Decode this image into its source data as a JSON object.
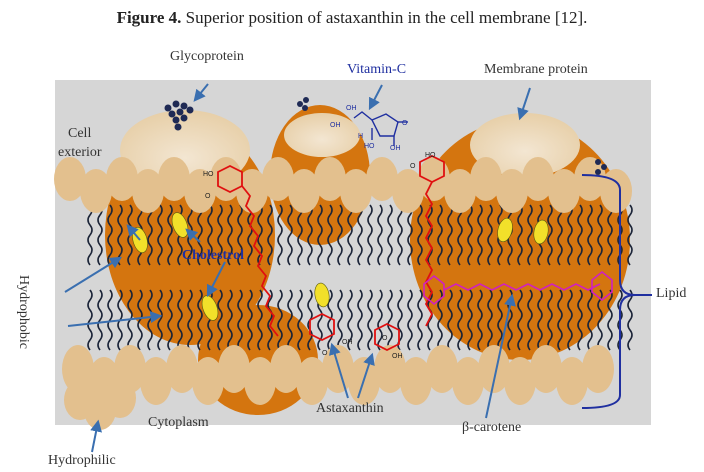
{
  "caption": {
    "figure_number": "Figure 4.",
    "text": " Superior position of astaxanthin in the cell membrane [12]."
  },
  "labels": {
    "glycoprotein": "Glycoprotein",
    "vitamin_c": "Vitamin-C",
    "membrane_protein": "Membrane  protein",
    "cell_exterior_line1": "Cell",
    "cell_exterior_line2": "exterior",
    "cholestrol": "Cholestrol",
    "hydrophobic": "Hydrophobic",
    "lipid": "Lipid",
    "cytoplasm": "Cytoplasm",
    "astaxanthin": "Astaxanthin",
    "beta_carotene": "β-carotene",
    "hydrophilic": "Hydrophilic"
  },
  "molecule_text": {
    "ho_1": "HO",
    "o_1": "O",
    "ho_2": "HO",
    "o_2": "O",
    "oh_1": "OH",
    "o_3": "O",
    "oh_2": "OH",
    "o_4": "O",
    "vc_oh_top": "OH",
    "vc_oh_left": "OH",
    "vc_h": "H",
    "vc_o": "O",
    "vc_ho": "HO",
    "vc_oh_right": "OH"
  },
  "colors": {
    "background_box": "#d6d6d6",
    "lipid_head": "#e3c08e",
    "protein": "#d4750f",
    "lipid_tail": "#1b2438",
    "astaxanthin": "#e01010",
    "beta_carotene": "#d020c0",
    "cholesterol": "#f2e02a",
    "arrow": "#3a6fb0",
    "bracket": "#1f2fa0",
    "vitamin_c": "#1f2fa0",
    "cholestrol_label": "#1f2fa0"
  }
}
